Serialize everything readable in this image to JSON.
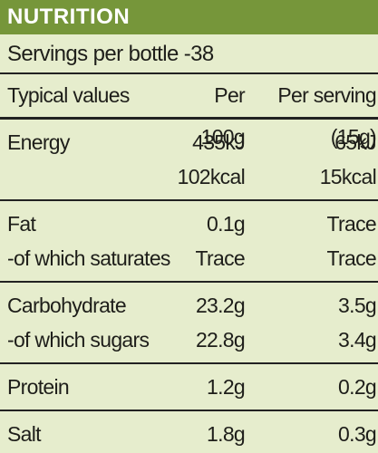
{
  "header": {
    "title": "NUTRITION",
    "servings": "Servings per bottle -38"
  },
  "table": {
    "columns": [
      "Typical values",
      "Per 100g",
      "Per serving (15g)"
    ],
    "groups": [
      [
        [
          "Energy"
        ],
        [
          "435kJ",
          "102kcal"
        ],
        [
          "65kJ",
          "15kcal"
        ]
      ],
      [
        [
          "Fat",
          "-of which saturates"
        ],
        [
          "0.1g",
          "Trace"
        ],
        [
          "Trace",
          "Trace"
        ]
      ],
      [
        [
          "Carbohydrate",
          "-of which sugars"
        ],
        [
          "23.2g",
          "22.8g"
        ],
        [
          "3.5g",
          "3.4g"
        ]
      ],
      [
        [
          "Protein"
        ],
        [
          "1.2g"
        ],
        [
          "0.2g"
        ]
      ],
      [
        [
          "Salt"
        ],
        [
          "1.8g"
        ],
        [
          "0.3g"
        ]
      ]
    ]
  }
}
